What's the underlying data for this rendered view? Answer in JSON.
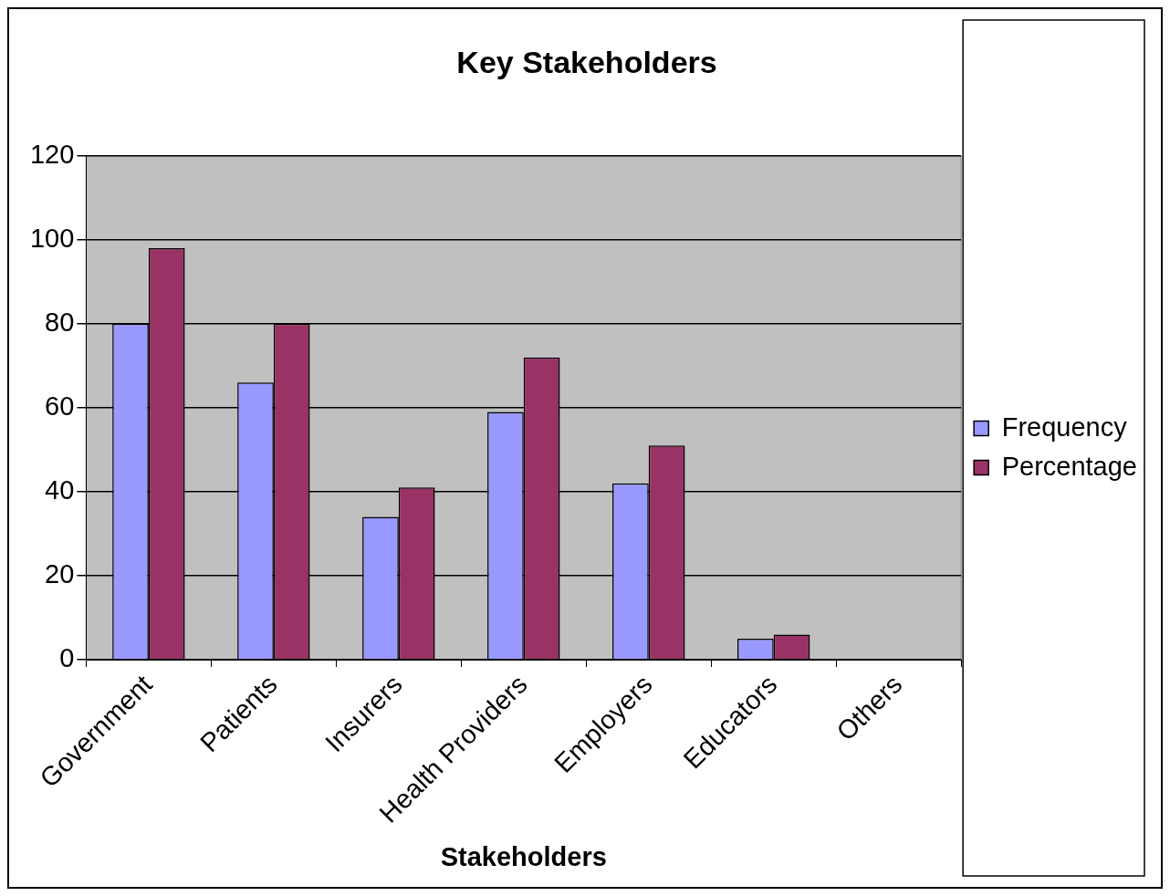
{
  "chart_data": {
    "type": "bar",
    "title": "Key Stakeholders",
    "xlabel": "Stakeholders",
    "categories": [
      "Government",
      "Patients",
      "Insurers",
      "Health Providers",
      "Employers",
      "Educators",
      "Others"
    ],
    "series": [
      {
        "name": "Frequency",
        "color": "#9999ff",
        "values": [
          80,
          66,
          34,
          59,
          42,
          5,
          0
        ]
      },
      {
        "name": "Percentage",
        "color": "#993366",
        "values": [
          98,
          80,
          41,
          72,
          51,
          6,
          0
        ]
      }
    ],
    "ylim": [
      0,
      120
    ],
    "yticks": [
      0,
      20,
      40,
      60,
      80,
      100,
      120
    ],
    "grid": "y",
    "legend": "right"
  }
}
